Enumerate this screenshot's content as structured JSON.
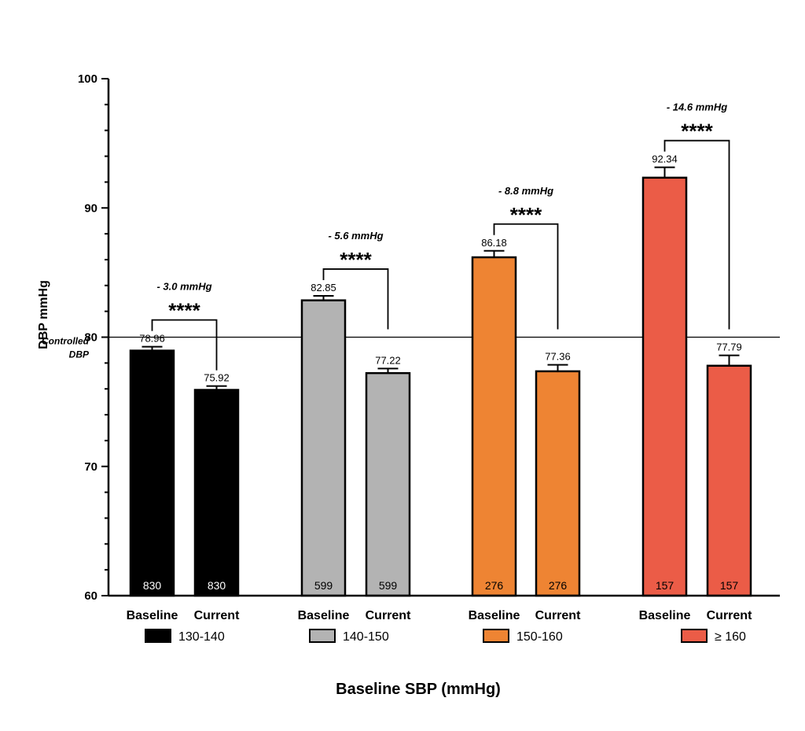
{
  "chart_data": {
    "type": "bar",
    "ylabel": "DBP mmHg",
    "xlabel": "Baseline SBP (mmHg)",
    "ylim": [
      60,
      100
    ],
    "yticks": [
      60,
      70,
      80,
      90,
      100
    ],
    "reference_line": {
      "value": 80,
      "label_line1": "Controlled",
      "label_line2": "DBP"
    },
    "bar_categories": [
      "Baseline",
      "Current"
    ],
    "groups": [
      {
        "name": "130-140",
        "color": "#000000",
        "values": [
          78.96,
          75.92
        ],
        "value_labels": [
          "78.96",
          "75.92"
        ],
        "errors": [
          0.3,
          0.3
        ],
        "n": [
          "830",
          "830"
        ],
        "n_color": "light",
        "difference": "- 3.0 mmHg",
        "significance": "****"
      },
      {
        "name": "140-150",
        "color": "#b3b3b3",
        "values": [
          82.85,
          77.22
        ],
        "value_labels": [
          "82.85",
          "77.22"
        ],
        "errors": [
          0.35,
          0.35
        ],
        "n": [
          "599",
          "599"
        ],
        "n_color": "dark",
        "difference": "- 5.6 mmHg",
        "significance": "****"
      },
      {
        "name": "150-160",
        "color": "#ee8433",
        "values": [
          86.18,
          77.36
        ],
        "value_labels": [
          "86.18",
          "77.36"
        ],
        "errors": [
          0.5,
          0.5
        ],
        "n": [
          "276",
          "276"
        ],
        "n_color": "dark",
        "difference": "- 8.8 mmHg",
        "significance": "****"
      },
      {
        "name": "≥ 160",
        "color": "#eb5c47",
        "values": [
          92.34,
          77.79
        ],
        "value_labels": [
          "92.34",
          "77.79"
        ],
        "errors": [
          0.8,
          0.8
        ],
        "n": [
          "157",
          "157"
        ],
        "n_color": "dark",
        "difference": "- 14.6 mmHg",
        "significance": "****"
      }
    ]
  }
}
